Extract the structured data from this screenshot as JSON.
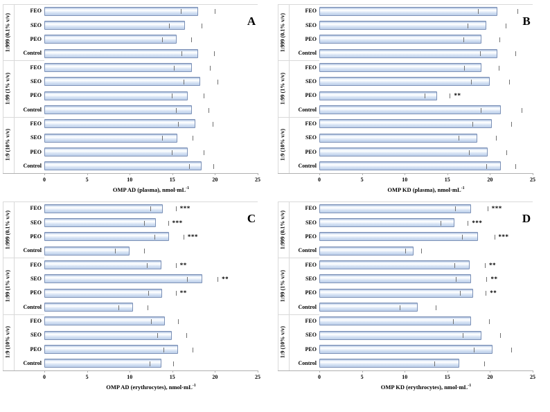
{
  "figure": {
    "background": "#ffffff",
    "panel_letters": [
      "A",
      "B",
      "C",
      "D"
    ]
  },
  "colors": {
    "bar_fill_dark": "#8fa5c8",
    "bar_fill_light": "#f3f8fd",
    "bar_fill_mid": "#c2d3ec",
    "bar_border": "#7b90b6",
    "error_bar": "#6f6f6f",
    "axis_line": "#b0b0b0",
    "separator_line": "#d9d9d9",
    "text": "#000000"
  },
  "chart_data": [
    {
      "type": "bar",
      "orientation": "horizontal",
      "panel_letter": "A",
      "xlabel": "OMP AD (plasma), nmol·mL",
      "xlabel_sup": "-1",
      "xlim": [
        0,
        25
      ],
      "xticks": [
        0,
        5,
        10,
        15,
        20,
        25
      ],
      "grid": false,
      "groups": [
        {
          "label": "1:999 (0.1% v/v)",
          "bars": [
            {
              "label": "FEO",
              "value": 18.0,
              "error": 2.0,
              "annotation": ""
            },
            {
              "label": "SEO",
              "value": 16.5,
              "error": 1.9,
              "annotation": ""
            },
            {
              "label": "PEO",
              "value": 15.5,
              "error": 1.7,
              "annotation": ""
            },
            {
              "label": "Control",
              "value": 18.0,
              "error": 1.9,
              "annotation": ""
            }
          ]
        },
        {
          "label": "1:99 (1% v/v)",
          "bars": [
            {
              "label": "FEO",
              "value": 17.3,
              "error": 2.1,
              "annotation": ""
            },
            {
              "label": "SEO",
              "value": 18.3,
              "error": 2.0,
              "annotation": ""
            },
            {
              "label": "PEO",
              "value": 16.8,
              "error": 1.9,
              "annotation": ""
            },
            {
              "label": "Control",
              "value": 17.3,
              "error": 1.9,
              "annotation": ""
            }
          ]
        },
        {
          "label": "1:9 (10% v/v)",
          "bars": [
            {
              "label": "FEO",
              "value": 17.7,
              "error": 2.0,
              "annotation": ""
            },
            {
              "label": "SEO",
              "value": 15.6,
              "error": 1.8,
              "annotation": ""
            },
            {
              "label": "PEO",
              "value": 16.8,
              "error": 1.9,
              "annotation": ""
            },
            {
              "label": "Control",
              "value": 18.4,
              "error": 1.4,
              "annotation": ""
            }
          ]
        }
      ]
    },
    {
      "type": "bar",
      "orientation": "horizontal",
      "panel_letter": "B",
      "xlabel": "OMP KD (plasma), nmol·mL",
      "xlabel_sup": "-1",
      "xlim": [
        0,
        25
      ],
      "xticks": [
        0,
        5,
        10,
        15,
        20,
        25
      ],
      "grid": false,
      "groups": [
        {
          "label": "1:999 (0.1% v/v)",
          "bars": [
            {
              "label": "FEO",
              "value": 20.9,
              "error": 2.3,
              "annotation": ""
            },
            {
              "label": "SEO",
              "value": 19.6,
              "error": 2.2,
              "annotation": ""
            },
            {
              "label": "PEO",
              "value": 19.0,
              "error": 2.1,
              "annotation": ""
            },
            {
              "label": "Control",
              "value": 20.9,
              "error": 2.1,
              "annotation": ""
            }
          ]
        },
        {
          "label": "1:99 (1% v/v)",
          "bars": [
            {
              "label": "FEO",
              "value": 19.0,
              "error": 2.0,
              "annotation": ""
            },
            {
              "label": "SEO",
              "value": 20.0,
              "error": 2.2,
              "annotation": ""
            },
            {
              "label": "PEO",
              "value": 13.8,
              "error": 1.5,
              "annotation": "**"
            },
            {
              "label": "Control",
              "value": 21.3,
              "error": 2.4,
              "annotation": ""
            }
          ]
        },
        {
          "label": "1:9 (10% v/v)",
          "bars": [
            {
              "label": "FEO",
              "value": 20.2,
              "error": 2.3,
              "annotation": ""
            },
            {
              "label": "SEO",
              "value": 18.5,
              "error": 2.2,
              "annotation": ""
            },
            {
              "label": "PEO",
              "value": 19.7,
              "error": 2.2,
              "annotation": ""
            },
            {
              "label": "Control",
              "value": 21.3,
              "error": 1.7,
              "annotation": ""
            }
          ]
        }
      ]
    },
    {
      "type": "bar",
      "orientation": "horizontal",
      "panel_letter": "C",
      "xlabel": "OMP AD (erythrocytes), nmol·mL",
      "xlabel_sup": "-1",
      "xlim": [
        0,
        25
      ],
      "xticks": [
        0,
        5,
        10,
        15,
        20,
        25
      ],
      "grid": false,
      "groups": [
        {
          "label": "1:999 (0.1% v/v)",
          "bars": [
            {
              "label": "FEO",
              "value": 13.9,
              "error": 1.5,
              "annotation": "***"
            },
            {
              "label": "SEO",
              "value": 13.1,
              "error": 1.4,
              "annotation": "***"
            },
            {
              "label": "PEO",
              "value": 14.6,
              "error": 1.7,
              "annotation": "***"
            },
            {
              "label": "Control",
              "value": 10.0,
              "error": 1.7,
              "annotation": ""
            }
          ]
        },
        {
          "label": "1:99 (1% v/v)",
          "bars": [
            {
              "label": "FEO",
              "value": 13.7,
              "error": 1.7,
              "annotation": "**"
            },
            {
              "label": "SEO",
              "value": 18.5,
              "error": 1.8,
              "annotation": "**"
            },
            {
              "label": "PEO",
              "value": 13.8,
              "error": 1.6,
              "annotation": "**"
            },
            {
              "label": "Control",
              "value": 10.4,
              "error": 1.7,
              "annotation": ""
            }
          ]
        },
        {
          "label": "1:9 (10% v/v)",
          "bars": [
            {
              "label": "FEO",
              "value": 14.1,
              "error": 1.6,
              "annotation": ""
            },
            {
              "label": "SEO",
              "value": 14.9,
              "error": 1.7,
              "annotation": ""
            },
            {
              "label": "PEO",
              "value": 15.7,
              "error": 1.7,
              "annotation": ""
            },
            {
              "label": "Control",
              "value": 13.7,
              "error": 1.4,
              "annotation": ""
            }
          ]
        }
      ]
    },
    {
      "type": "bar",
      "orientation": "horizontal",
      "panel_letter": "D",
      "xlabel": "OMP KD (erythrocytes), nmol·mL",
      "xlabel_sup": "-1",
      "xlim": [
        0,
        25
      ],
      "xticks": [
        0,
        5,
        10,
        15,
        20,
        25
      ],
      "grid": false,
      "groups": [
        {
          "label": "1:999 (0.1% v/v)",
          "bars": [
            {
              "label": "FEO",
              "value": 17.8,
              "error": 1.9,
              "annotation": "***"
            },
            {
              "label": "SEO",
              "value": 15.8,
              "error": 1.6,
              "annotation": "***"
            },
            {
              "label": "PEO",
              "value": 18.6,
              "error": 1.9,
              "annotation": "***"
            },
            {
              "label": "Control",
              "value": 11.0,
              "error": 0.9,
              "annotation": ""
            }
          ]
        },
        {
          "label": "1:99 (1% v/v)",
          "bars": [
            {
              "label": "FEO",
              "value": 17.6,
              "error": 1.8,
              "annotation": "**"
            },
            {
              "label": "SEO",
              "value": 17.8,
              "error": 1.8,
              "annotation": "**"
            },
            {
              "label": "PEO",
              "value": 18.0,
              "error": 1.5,
              "annotation": "**"
            },
            {
              "label": "Control",
              "value": 11.5,
              "error": 2.1,
              "annotation": ""
            }
          ]
        },
        {
          "label": "1:9 (10% v/v)",
          "bars": [
            {
              "label": "FEO",
              "value": 17.8,
              "error": 2.1,
              "annotation": ""
            },
            {
              "label": "SEO",
              "value": 19.0,
              "error": 2.2,
              "annotation": ""
            },
            {
              "label": "PEO",
              "value": 20.3,
              "error": 2.2,
              "annotation": ""
            },
            {
              "label": "Control",
              "value": 16.4,
              "error": 2.9,
              "annotation": ""
            }
          ]
        }
      ]
    }
  ]
}
